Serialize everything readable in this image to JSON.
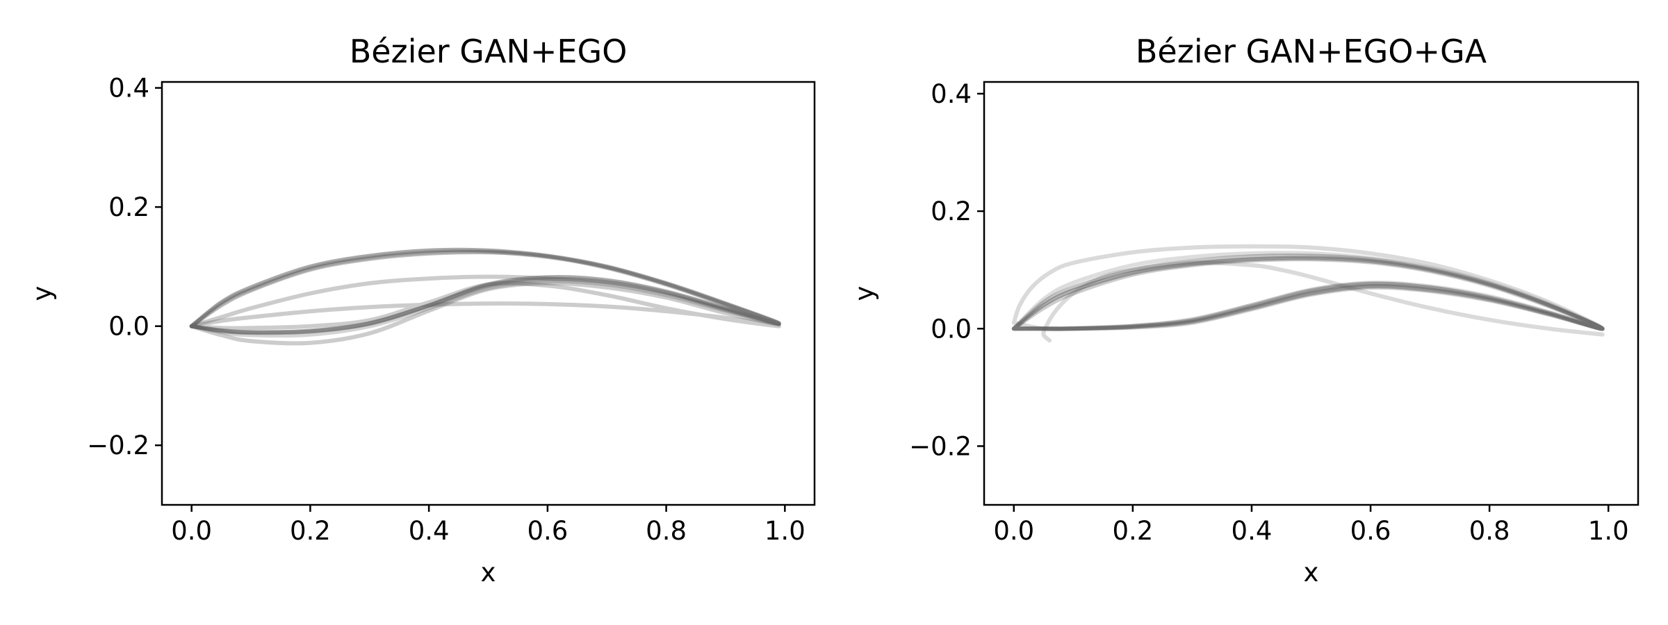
{
  "chart_data": [
    {
      "type": "line",
      "title": "Bézier GAN+EGO",
      "xlabel": "x",
      "ylabel": "y",
      "xlim": [
        -0.05,
        1.05
      ],
      "ylim": [
        -0.3,
        0.41
      ],
      "xticks": [
        0.0,
        0.2,
        0.4,
        0.6,
        0.8,
        1.0
      ],
      "xtick_labels": [
        "0.0",
        "0.2",
        "0.4",
        "0.6",
        "0.8",
        "1.0"
      ],
      "yticks": [
        -0.2,
        0.0,
        0.2,
        0.4
      ],
      "ytick_labels": [
        "−0.2",
        "0.0",
        "0.2",
        "0.4"
      ],
      "grid": false,
      "line_color": "#555555",
      "series": [
        {
          "opacity": 0.5,
          "x": [
            0.0,
            0.05,
            0.1,
            0.2,
            0.3,
            0.4,
            0.5,
            0.6,
            0.7,
            0.8,
            0.9,
            0.99,
            0.9,
            0.8,
            0.7,
            0.6,
            0.5,
            0.4,
            0.3,
            0.2,
            0.1,
            0.05,
            0.0
          ],
          "y": [
            0.0,
            0.04,
            0.065,
            0.1,
            0.118,
            0.127,
            0.127,
            0.118,
            0.1,
            0.072,
            0.038,
            0.005,
            0.03,
            0.058,
            0.077,
            0.082,
            0.07,
            0.035,
            0.005,
            -0.008,
            -0.01,
            -0.007,
            0.0
          ]
        },
        {
          "opacity": 0.4,
          "x": [
            0.0,
            0.05,
            0.1,
            0.2,
            0.3,
            0.4,
            0.5,
            0.6,
            0.7,
            0.8,
            0.9,
            0.99,
            0.9,
            0.8,
            0.7,
            0.6,
            0.5,
            0.4,
            0.3,
            0.2,
            0.1,
            0.05,
            0.0
          ],
          "y": [
            0.0,
            0.035,
            0.06,
            0.095,
            0.113,
            0.122,
            0.124,
            0.117,
            0.098,
            0.07,
            0.036,
            0.004,
            0.028,
            0.056,
            0.074,
            0.079,
            0.068,
            0.034,
            0.004,
            -0.009,
            -0.011,
            -0.008,
            0.0
          ]
        },
        {
          "opacity": 0.3,
          "x": [
            0.0,
            0.05,
            0.1,
            0.2,
            0.3,
            0.4,
            0.5,
            0.6,
            0.7,
            0.8,
            0.9,
            0.99,
            0.9,
            0.8,
            0.7,
            0.6,
            0.5,
            0.4,
            0.3,
            0.2,
            0.1,
            0.05,
            0.0
          ],
          "y": [
            0.0,
            0.015,
            0.03,
            0.055,
            0.072,
            0.08,
            0.083,
            0.08,
            0.07,
            0.052,
            0.028,
            0.003,
            0.022,
            0.048,
            0.065,
            0.072,
            0.062,
            0.026,
            -0.012,
            -0.028,
            -0.025,
            -0.015,
            0.0
          ]
        },
        {
          "opacity": 0.3,
          "x": [
            0.0,
            0.05,
            0.1,
            0.2,
            0.3,
            0.4,
            0.5,
            0.6,
            0.7,
            0.8,
            0.9,
            0.99,
            0.9,
            0.8,
            0.7,
            0.6,
            0.5,
            0.4,
            0.3,
            0.2,
            0.1,
            0.05,
            0.0
          ],
          "y": [
            0.0,
            0.009,
            0.015,
            0.025,
            0.032,
            0.036,
            0.038,
            0.037,
            0.033,
            0.025,
            0.014,
            0.0,
            0.012,
            0.03,
            0.052,
            0.068,
            0.07,
            0.04,
            0.01,
            0.0,
            -0.003,
            -0.003,
            0.0
          ]
        },
        {
          "opacity": 0.25,
          "x": [
            0.0,
            0.05,
            0.1,
            0.2,
            0.3,
            0.4,
            0.5,
            0.6,
            0.7,
            0.8,
            0.9,
            0.99,
            0.9,
            0.8,
            0.7,
            0.6,
            0.5,
            0.4,
            0.3,
            0.2,
            0.1,
            0.05,
            0.0
          ],
          "y": [
            0.0,
            0.038,
            0.062,
            0.097,
            0.115,
            0.124,
            0.125,
            0.116,
            0.099,
            0.071,
            0.037,
            0.004,
            0.026,
            0.052,
            0.07,
            0.075,
            0.064,
            0.03,
            0.0,
            -0.014,
            -0.015,
            -0.01,
            0.0
          ]
        }
      ]
    },
    {
      "type": "line",
      "title": "Bézier GAN+EGO+GA",
      "xlabel": "x",
      "ylabel": "y",
      "xlim": [
        -0.05,
        1.05
      ],
      "ylim": [
        -0.3,
        0.42
      ],
      "xticks": [
        0.0,
        0.2,
        0.4,
        0.6,
        0.8,
        1.0
      ],
      "xtick_labels": [
        "0.0",
        "0.2",
        "0.4",
        "0.6",
        "0.8",
        "1.0"
      ],
      "yticks": [
        -0.2,
        0.0,
        0.2,
        0.4
      ],
      "ytick_labels": [
        "−0.2",
        "0.0",
        "0.2",
        "0.4"
      ],
      "grid": false,
      "line_color": "#555555",
      "series": [
        {
          "opacity": 0.45,
          "x": [
            0.0,
            0.05,
            0.1,
            0.2,
            0.3,
            0.4,
            0.5,
            0.6,
            0.7,
            0.8,
            0.9,
            0.99,
            0.9,
            0.8,
            0.7,
            0.6,
            0.5,
            0.4,
            0.3,
            0.2,
            0.1,
            0.05,
            0.0
          ],
          "y": [
            0.0,
            0.04,
            0.065,
            0.095,
            0.11,
            0.118,
            0.12,
            0.115,
            0.1,
            0.075,
            0.04,
            0.0,
            0.025,
            0.05,
            0.066,
            0.072,
            0.06,
            0.035,
            0.012,
            0.003,
            0.0,
            0.0,
            0.0
          ]
        },
        {
          "opacity": 0.35,
          "x": [
            0.0,
            0.05,
            0.1,
            0.2,
            0.3,
            0.4,
            0.5,
            0.6,
            0.7,
            0.8,
            0.9,
            0.99,
            0.9,
            0.8,
            0.7,
            0.6,
            0.5,
            0.4,
            0.3,
            0.2,
            0.1,
            0.05,
            0.0
          ],
          "y": [
            0.0,
            0.045,
            0.07,
            0.1,
            0.115,
            0.123,
            0.124,
            0.118,
            0.102,
            0.076,
            0.04,
            0.0,
            0.027,
            0.053,
            0.07,
            0.076,
            0.064,
            0.038,
            0.014,
            0.004,
            0.0,
            0.0,
            0.0
          ]
        },
        {
          "opacity": 0.3,
          "x": [
            0.0,
            0.05,
            0.1,
            0.2,
            0.3,
            0.4,
            0.5,
            0.6,
            0.7,
            0.8,
            0.9,
            0.99,
            0.9,
            0.8,
            0.7,
            0.6,
            0.5,
            0.4,
            0.3,
            0.2,
            0.1,
            0.05,
            0.0
          ],
          "y": [
            0.0,
            0.035,
            0.06,
            0.092,
            0.108,
            0.116,
            0.118,
            0.113,
            0.098,
            0.073,
            0.038,
            0.0,
            0.024,
            0.048,
            0.064,
            0.07,
            0.058,
            0.033,
            0.01,
            0.002,
            0.0,
            0.0,
            0.0
          ]
        },
        {
          "opacity": 0.22,
          "x": [
            0.0,
            0.01,
            0.03,
            0.06,
            0.1,
            0.2,
            0.3,
            0.4,
            0.5,
            0.6,
            0.7,
            0.8,
            0.9,
            0.99,
            0.9,
            0.8,
            0.7,
            0.6,
            0.5,
            0.4,
            0.3,
            0.2,
            0.1,
            0.05,
            0.0
          ],
          "y": [
            0.01,
            0.04,
            0.07,
            0.095,
            0.112,
            0.13,
            0.138,
            0.14,
            0.138,
            0.128,
            0.11,
            0.082,
            0.045,
            0.0,
            0.026,
            0.052,
            0.07,
            0.077,
            0.066,
            0.04,
            0.015,
            0.004,
            0.0,
            0.0,
            0.01
          ]
        },
        {
          "opacity": 0.22,
          "x": [
            0.06,
            0.05,
            0.055,
            0.07,
            0.1,
            0.15,
            0.2,
            0.3,
            0.4,
            0.45,
            0.5,
            0.6,
            0.7,
            0.8,
            0.9,
            0.99
          ],
          "y": [
            -0.02,
            -0.01,
            0.005,
            0.03,
            0.06,
            0.088,
            0.1,
            0.112,
            0.108,
            0.1,
            0.088,
            0.06,
            0.035,
            0.015,
            0.0,
            -0.01
          ]
        },
        {
          "opacity": 0.2,
          "x": [
            0.0,
            0.05,
            0.1,
            0.2,
            0.3,
            0.4,
            0.5,
            0.6,
            0.7,
            0.8,
            0.9,
            0.99,
            0.9,
            0.8,
            0.7,
            0.6,
            0.5,
            0.4,
            0.3,
            0.2,
            0.1,
            0.05,
            0.0
          ],
          "y": [
            0.0,
            0.05,
            0.078,
            0.108,
            0.122,
            0.128,
            0.128,
            0.12,
            0.104,
            0.078,
            0.042,
            0.0,
            0.028,
            0.055,
            0.072,
            0.078,
            0.066,
            0.04,
            0.016,
            0.005,
            0.001,
            0.0,
            0.0
          ]
        }
      ]
    }
  ]
}
